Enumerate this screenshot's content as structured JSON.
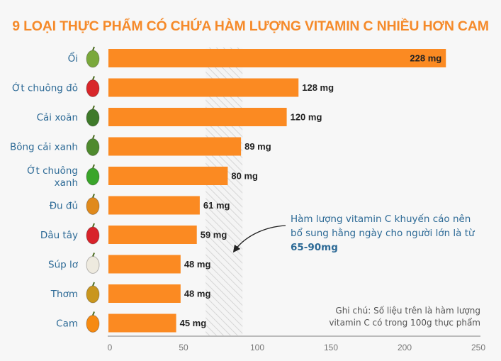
{
  "title": "9 LOẠI THỰC PHẨM CÓ CHỨA HÀM LƯỢNG VITAMIN C NHIỀU HƠN CAM",
  "annotation": {
    "text": "Hàm lượng vitamin C khuyến cáo nên bổ sung hằng ngày cho người lớn là từ",
    "highlight": "65-90mg",
    "range": [
      65,
      90
    ]
  },
  "footnote": "Ghi chú: Số liệu trên là hàm lượng vitamin C có trong 100g thực phẩm",
  "chart_data": {
    "type": "bar",
    "orientation": "horizontal",
    "title": "9 LOẠI THỰC PHẨM CÓ CHỨA HÀM LƯỢNG VITAMIN C NHIỀU HƠN CAM",
    "categories": [
      "Ổi",
      "Ớt chuông đỏ",
      "Cải xoăn",
      "Bông cải xanh",
      "Ớt chuông xanh",
      "Đu đủ",
      "Dâu tây",
      "Súp lơ",
      "Thơm",
      "Cam"
    ],
    "icons": [
      "guava-icon",
      "red-bell-pepper-icon",
      "kale-icon",
      "broccoli-icon",
      "green-bell-pepper-icon",
      "papaya-icon",
      "strawberry-icon",
      "cauliflower-icon",
      "pineapple-icon",
      "orange-icon"
    ],
    "icon_colors": [
      "#7aa83c",
      "#d8262a",
      "#3f7a2a",
      "#4f8a2e",
      "#3aa52a",
      "#e08a1c",
      "#d8232a",
      "#eeeadf",
      "#c9961e",
      "#f68a12"
    ],
    "values": [
      228,
      128,
      120,
      89,
      80,
      61,
      59,
      48,
      48,
      45
    ],
    "value_labels": [
      "228 mg",
      "128 mg",
      "120 mg",
      "89 mg",
      "80 mg",
      "61 mg",
      "59 mg",
      "48 mg",
      "48 mg",
      "45 mg"
    ],
    "unit": "mg",
    "xlim": [
      0,
      250
    ],
    "ticks": [
      0,
      50,
      100,
      150,
      200,
      250
    ],
    "bar_color": "#fb8a22",
    "band_color": "#d9d9d9",
    "grid": false
  }
}
